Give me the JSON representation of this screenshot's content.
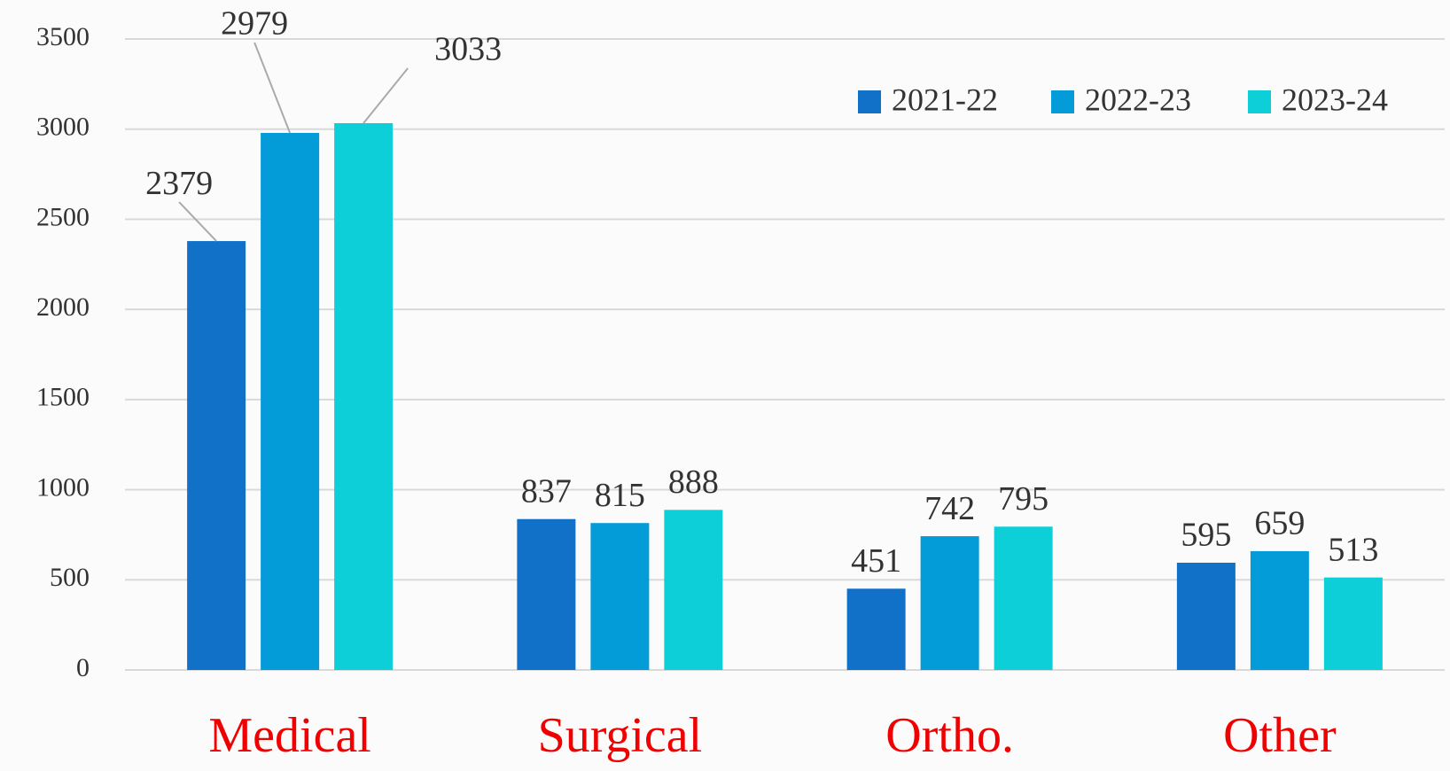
{
  "chart_data": {
    "type": "bar",
    "categories": [
      "Medical",
      "Surgical",
      "Ortho.",
      "Other"
    ],
    "series": [
      {
        "name": "2021-22",
        "color": "#1170c8",
        "values": [
          2379,
          837,
          451,
          595
        ]
      },
      {
        "name": "2022-23",
        "color": "#039cd8",
        "values": [
          2979,
          815,
          742,
          659
        ]
      },
      {
        "name": "2023-24",
        "color": "#0ccfd8",
        "values": [
          3033,
          888,
          795,
          513
        ]
      }
    ],
    "ylim": [
      0,
      3500
    ],
    "yticks": [
      0,
      500,
      1000,
      1500,
      2000,
      2500,
      3000,
      3500
    ],
    "grid": true,
    "legend": "top-right"
  }
}
